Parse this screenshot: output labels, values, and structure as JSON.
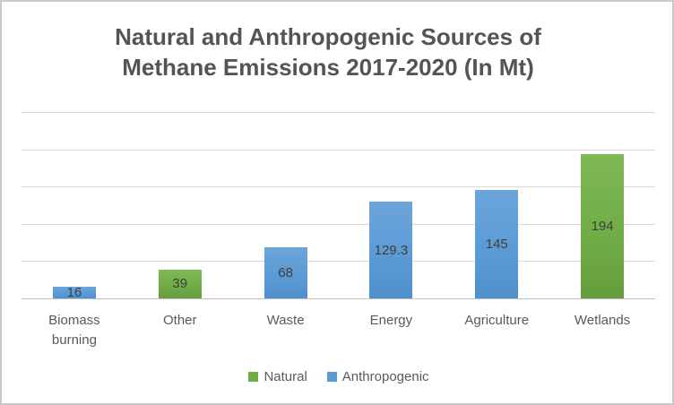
{
  "frame": {
    "border_color": "#c9c9c9",
    "background": "#ffffff"
  },
  "chart_data": {
    "type": "bar",
    "title": "Natural and Anthropogenic Sources of Methane Emissions 2017-2020 (In Mt)",
    "categories": [
      "Biomass burning",
      "Other",
      "Waste",
      "Energy",
      "Agriculture",
      "Wetlands"
    ],
    "values": [
      16,
      39,
      68,
      129.3,
      145,
      194
    ],
    "value_labels": [
      "16",
      "39",
      "68",
      "129.3",
      "145",
      "194"
    ],
    "bar_series": [
      "Anthropogenic",
      "Natural",
      "Anthropogenic",
      "Anthropogenic",
      "Anthropogenic",
      "Natural"
    ],
    "series": [
      {
        "name": "Natural",
        "color": "#70AD47",
        "color_light": "#7fb955",
        "color_dark": "#669d3e"
      },
      {
        "name": "Anthropogenic",
        "color": "#5B9BD5",
        "color_light": "#6ca5db",
        "color_dark": "#4f8fcc"
      }
    ],
    "xlabel": "",
    "ylabel": "",
    "ylim": [
      0,
      250
    ],
    "gridline_step": 50,
    "grid": true,
    "legend_position": "bottom",
    "data_label_color": "#3f3f3f",
    "gridline_color": "#d9d9d9",
    "axis_color": "#bfbfbf",
    "title_color": "#545454",
    "label_color": "#595959"
  }
}
